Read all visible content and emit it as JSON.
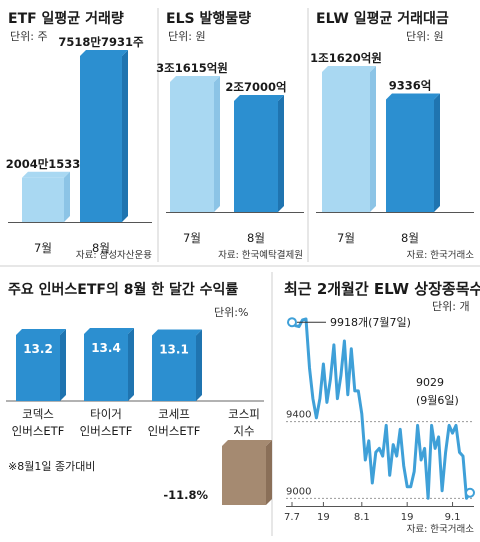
{
  "colors": {
    "light_bar_face": "#a9d8f2",
    "light_bar_side": "#8cc4e6",
    "dark_bar_face": "#2c8fd0",
    "dark_bar_side": "#1f74b0",
    "negative_bar_face": "#a58a71",
    "negative_bar_side": "#8a6f58",
    "line": "#3fa0d8",
    "divider": "#cfcfcf"
  },
  "chart_data": [
    {
      "type": "bar",
      "title": "ETF 일평균 거래량",
      "unit": "단위: 주",
      "categories": [
        "7월",
        "8월"
      ],
      "values": [
        20041533,
        75187931
      ],
      "value_labels": [
        "2004만1533",
        "7518만7931주"
      ],
      "source": "자료: 삼성자산운용"
    },
    {
      "type": "bar",
      "title": "ELS 발행물량",
      "unit": "단위: 원",
      "categories": [
        "7월",
        "8월"
      ],
      "values": [
        3161500000000,
        2700000000000
      ],
      "value_labels": [
        "3조1615억원",
        "2조7000억"
      ],
      "source": "자료: 한국예탁결제원"
    },
    {
      "type": "bar",
      "title": "ELW 일평균 거래대금",
      "unit": "단위: 원",
      "categories": [
        "7월",
        "8월"
      ],
      "values": [
        1162000000000,
        933600000000
      ],
      "value_labels": [
        "1조1620억원",
        "9336억"
      ],
      "source": "자료: 한국거래소"
    },
    {
      "type": "bar",
      "title": "주요 인버스ETF의 8월 한 달간 수익률",
      "unit": "단위:%",
      "categories": [
        "코덱스\n인버스ETF",
        "타이거\n인버스ETF",
        "코세프\n인버스ETF",
        "코스피\n지수"
      ],
      "category_lines": [
        [
          "코덱스",
          "인버스ETF"
        ],
        [
          "타이거",
          "인버스ETF"
        ],
        [
          "코세프",
          "인버스ETF"
        ],
        [
          "코스피",
          "지수"
        ]
      ],
      "values": [
        13.2,
        13.4,
        13.1,
        -11.8
      ],
      "value_labels": [
        "13.2",
        "13.4",
        "13.1",
        "-11.8%"
      ],
      "note": "※8월1일 종가대비"
    },
    {
      "type": "line",
      "title": "최근 2개월간 ELW 상장종목수",
      "unit": "단위: 개",
      "x_tick_labels": [
        "7.7",
        "19",
        "8.1",
        "19",
        "9.1"
      ],
      "y_ticks": [
        9000,
        9400
      ],
      "ylim": [
        8960,
        9940
      ],
      "series": [
        {
          "values": [
            9918,
            9900,
            9895,
            9930,
            9935,
            9680,
            9520,
            9420,
            9520,
            9700,
            9500,
            9620,
            9800,
            9520,
            9640,
            9820,
            9540,
            9780,
            9560,
            9560,
            9440,
            9200,
            9300,
            9080,
            9240,
            9260,
            9220,
            9380,
            9120,
            9280,
            9220,
            9360,
            9170,
            9060,
            9060,
            9140,
            9380,
            9200,
            9260,
            9000,
            9380,
            9260,
            9320,
            9040,
            9240,
            9380,
            9340,
            9380,
            9240,
            9220,
            9000,
            9029
          ]
        }
      ],
      "annotations": [
        {
          "label_lines": [
            "9918개(7월7일)"
          ],
          "value": 9918
        },
        {
          "label_lines": [
            "9029",
            "(9월6일)"
          ],
          "value": 9029
        }
      ],
      "source": "자료: 한국거래소"
    }
  ]
}
